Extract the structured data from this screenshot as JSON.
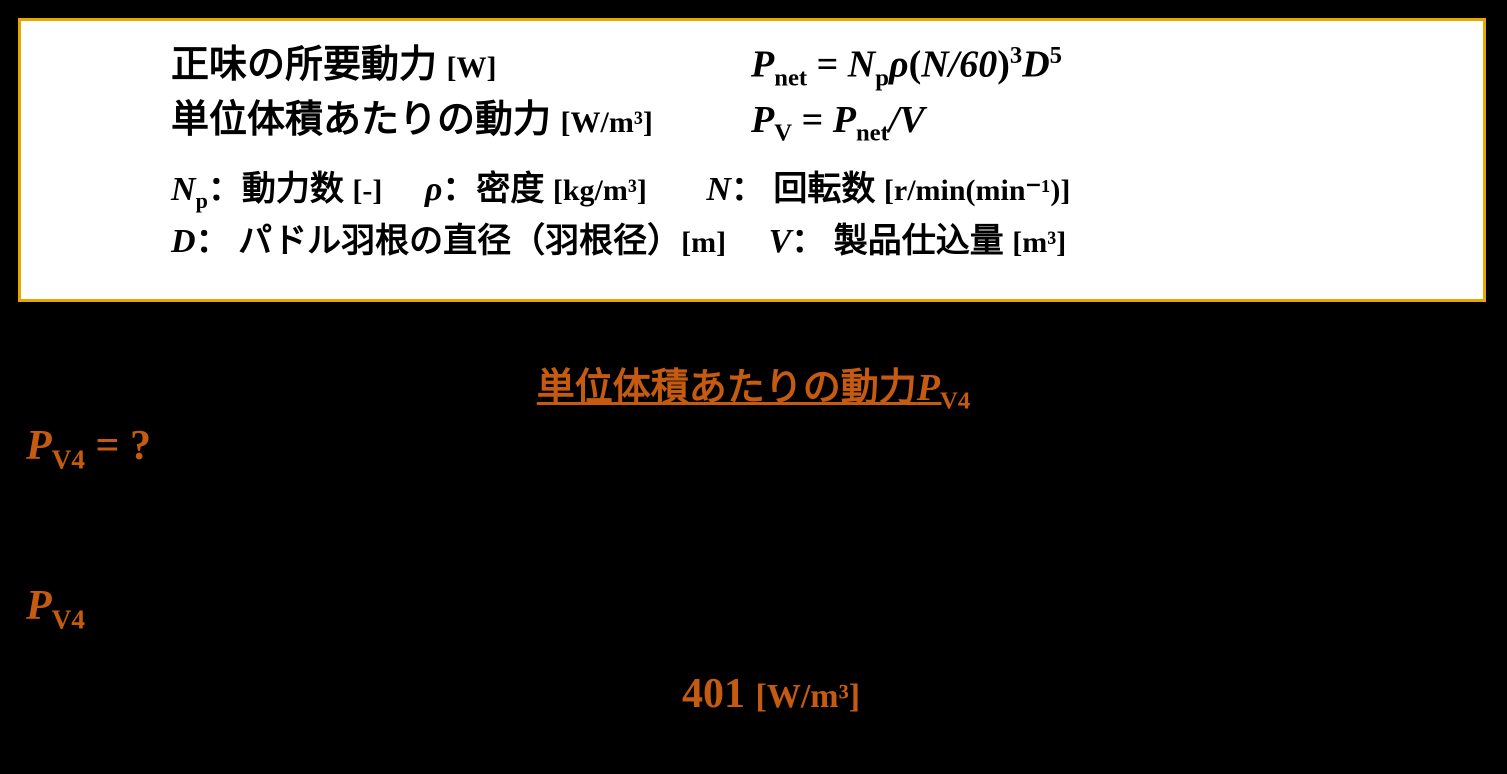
{
  "box": {
    "row1": {
      "label_jp": "正味の所要動力",
      "label_unit": "[W]",
      "formula_lhs": "P",
      "formula_lhs_sub": "net",
      "eq": " = ",
      "Np": "N",
      "Np_sub": "p",
      "rho": "ρ",
      "open": "(",
      "N_over_60": "N/60",
      "close": ")",
      "cube": "3",
      "D": "D",
      "fifth": "5"
    },
    "row2": {
      "label_jp": "単位体積あたりの動力",
      "label_unit": "[W/m³]",
      "lhs": "P",
      "lhs_sub": "V",
      "eq": " = ",
      "Pnet": "P",
      "Pnet_sub": "net",
      "over_V": "/V"
    },
    "defs": {
      "Np_var": "N",
      "Np_sub": "p",
      "Np_label": "動力数",
      "Np_unit": "[-]",
      "rho_var": "ρ",
      "rho_label": "密度",
      "rho_unit": "[kg/m³]",
      "N_var": "N",
      "N_label": "回転数",
      "N_unit": "[r/min(min⁻¹)]",
      "D_var": "D",
      "D_label": "パドル羽根の直径（羽根径）",
      "D_unit": "[m]",
      "V_var": "V",
      "V_label": "製品仕込量",
      "V_unit": "[m³]"
    }
  },
  "heading": {
    "text": "単位体積あたりの動力",
    "var": "P",
    "var_sub": "V4"
  },
  "question": {
    "var": "P",
    "var_sub": "V4",
    "tail": " = ?"
  },
  "pv4": {
    "var": "P",
    "var_sub": "V4"
  },
  "answer": {
    "value": "401",
    "unit": "[W/m³]"
  },
  "colors": {
    "background": "#000000",
    "box_bg": "#ffffff",
    "box_border": "#e6a800",
    "accent": "#c55a11",
    "text": "#000000"
  }
}
